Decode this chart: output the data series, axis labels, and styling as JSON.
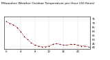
{
  "title": "Milwaukee Weather Outdoor Temperature per Hour (24 Hours)",
  "hours": [
    0,
    1,
    2,
    3,
    4,
    5,
    6,
    7,
    8,
    9,
    10,
    11,
    12,
    13,
    14,
    15,
    16,
    17,
    18,
    19,
    20,
    21,
    22,
    23
  ],
  "temps": [
    72,
    70,
    68,
    65,
    60,
    54,
    50,
    46,
    43,
    42,
    41,
    41,
    42,
    44,
    45,
    44,
    43,
    43,
    44,
    44,
    43,
    42,
    42,
    41
  ],
  "line_color": "#cc0000",
  "marker_color": "#111111",
  "bg_color": "#ffffff",
  "grid_color": "#999999",
  "ylim_min": 38,
  "ylim_max": 78,
  "yticks": [
    40,
    45,
    50,
    55,
    60,
    65,
    70,
    75
  ],
  "ytick_labels": [
    "40",
    "45",
    "50",
    "55",
    "60",
    "65",
    "70",
    "75"
  ],
  "xticks": [
    0,
    4,
    8,
    12,
    16,
    20
  ],
  "xtick_labels": [
    "0",
    "4",
    "8",
    "12",
    "16",
    "20"
  ],
  "vgrid_positions": [
    4,
    8,
    12,
    16,
    20
  ],
  "title_fontsize": 3.2,
  "tick_fontsize": 2.8,
  "fig_width": 1.6,
  "fig_height": 0.87,
  "dpi": 100
}
